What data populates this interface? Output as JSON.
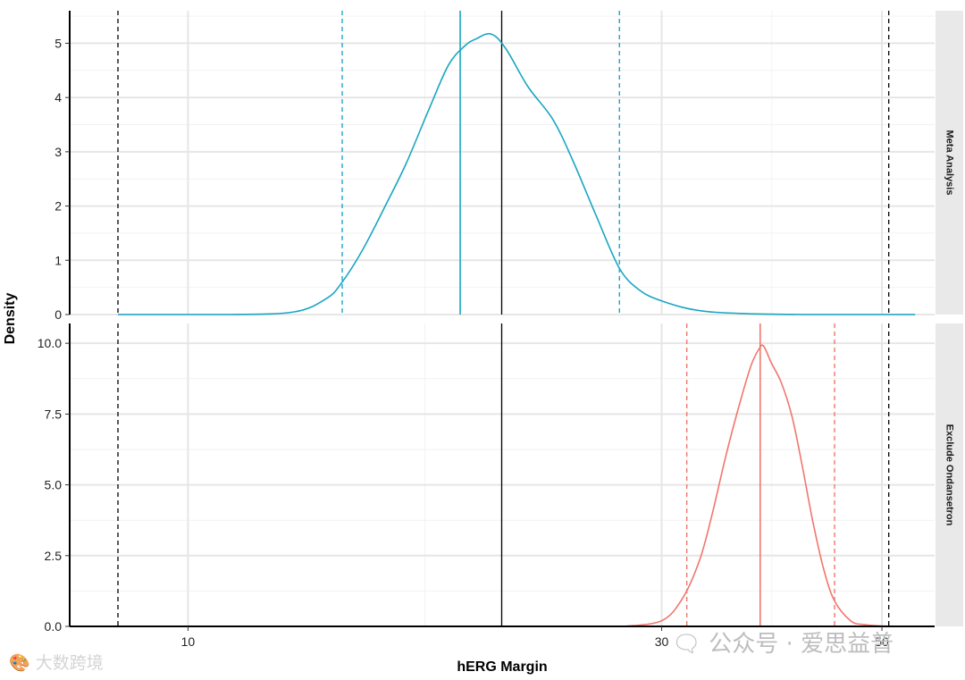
{
  "chart_data": {
    "type": "density",
    "xlabel": "hERG Margin",
    "ylabel": "Density",
    "x_scale": "log",
    "xlim": [
      7.6,
      56.5
    ],
    "x_ticks": [
      10,
      30,
      50
    ],
    "grid": true,
    "legend": "none",
    "reference_lines": {
      "solid": 20.7,
      "dashed": [
        8.5,
        50.8
      ],
      "color": "#000000"
    },
    "panels": [
      {
        "strip": "Meta Analysis",
        "color": "#1aa6c2",
        "ylim": [
          0,
          5.6
        ],
        "y_ticks": [
          0,
          1,
          2,
          3,
          4,
          5
        ],
        "median": 18.8,
        "interval": [
          14.3,
          27.2
        ],
        "x": [
          8.5,
          11.0,
          12.8,
          13.8,
          14.3,
          15.0,
          15.8,
          16.6,
          17.5,
          18.3,
          19.0,
          19.5,
          20.2,
          20.9,
          22.0,
          23.3,
          24.4,
          25.8,
          27.2,
          28.5,
          30.0,
          32.5,
          36.0,
          42.0,
          50.0,
          54.0
        ],
        "y": [
          0.0,
          0.0,
          0.05,
          0.3,
          0.6,
          1.2,
          2.0,
          2.8,
          3.8,
          4.6,
          4.95,
          5.08,
          5.17,
          4.9,
          4.2,
          3.6,
          2.85,
          1.8,
          0.85,
          0.45,
          0.25,
          0.08,
          0.02,
          0.0,
          0.0,
          0.0
        ]
      },
      {
        "strip": "Exclude Ondansetron",
        "color": "#f0766e",
        "ylim": [
          0,
          10.7
        ],
        "y_ticks": [
          0.0,
          2.5,
          5.0,
          7.5,
          10.0
        ],
        "y_tick_labels": [
          "0.0",
          "2.5",
          "5.0",
          "7.5",
          "10.0"
        ],
        "median": 37.7,
        "interval": [
          31.8,
          44.8
        ],
        "x": [
          27.5,
          30.0,
          31.5,
          32.8,
          33.8,
          34.8,
          35.9,
          36.9,
          37.6,
          38.0,
          38.7,
          39.6,
          40.6,
          41.6,
          42.6,
          43.7,
          44.8,
          46.5,
          48.0,
          51.0,
          53.0
        ],
        "y": [
          0.0,
          0.2,
          1.0,
          2.4,
          4.1,
          6.0,
          7.8,
          9.2,
          9.8,
          9.9,
          9.3,
          8.6,
          7.4,
          5.6,
          3.7,
          2.0,
          0.9,
          0.2,
          0.06,
          0.0,
          0.0
        ]
      }
    ]
  },
  "watermarks": {
    "left": "🎨 大数跨境",
    "right": "🗨 公众号 · 爱思益普"
  }
}
